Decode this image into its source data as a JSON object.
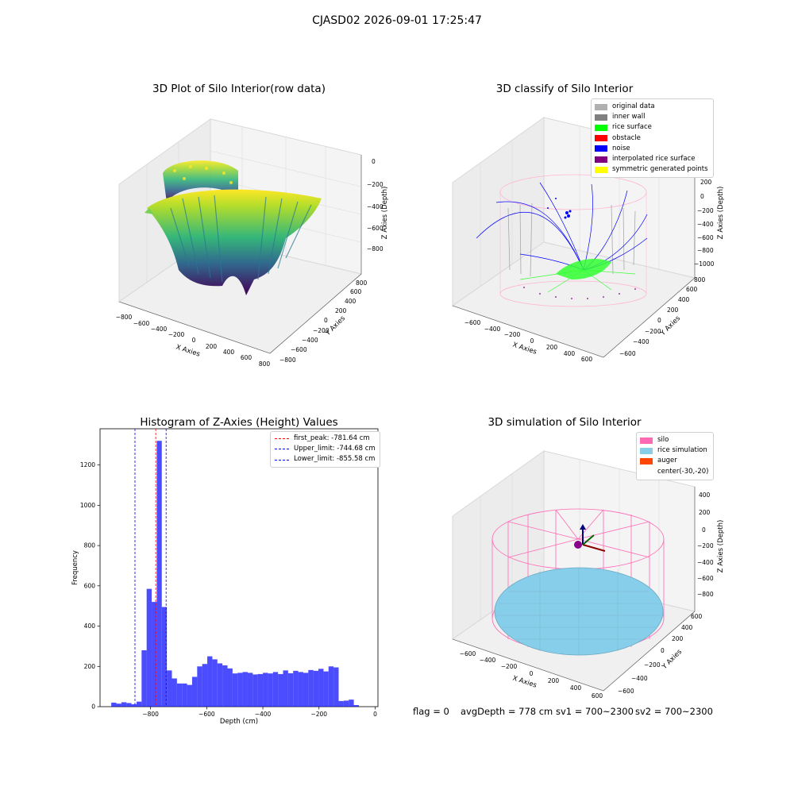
{
  "figure": {
    "title": "CJASD02 2026-09-01 17:25:47"
  },
  "panels": {
    "raw": {
      "title": "3D Plot of Silo Interior(row data)",
      "x_ticks": [
        "−800",
        "−600",
        "−400",
        "−200",
        "0",
        "200",
        "400",
        "600",
        "800"
      ],
      "y_ticks": [
        "−800",
        "−600",
        "−400",
        "−200",
        "0",
        "200",
        "400",
        "600",
        "800"
      ],
      "z_ticks": [
        "0",
        "−200",
        "−400",
        "−600",
        "−800"
      ],
      "x_label": "X Axies",
      "y_label": "Y Axies",
      "z_label": "Z Axies (Depth)"
    },
    "classify": {
      "title": "3D classify of Silo Interior",
      "x_ticks": [
        "−600",
        "−400",
        "−200",
        "0",
        "200",
        "400",
        "600"
      ],
      "y_ticks": [
        "−600",
        "−400",
        "−200",
        "0",
        "200",
        "400",
        "600",
        "800"
      ],
      "z_ticks": [
        "200",
        "0",
        "−200",
        "−400",
        "−600",
        "−800",
        "−1000"
      ],
      "x_label": "X Axies",
      "y_label": "Y Axies",
      "z_label": "Z Axies (Depth)",
      "legend": [
        {
          "label": "original data",
          "color": "#b0b0b0"
        },
        {
          "label": "inner wall",
          "color": "#808080"
        },
        {
          "label": "rice surface",
          "color": "#00ff00"
        },
        {
          "label": "obstacle",
          "color": "#ff0000"
        },
        {
          "label": "noise",
          "color": "#0000ff"
        },
        {
          "label": "interpolated rice surface",
          "color": "#800080"
        },
        {
          "label": "symmetric generated points",
          "color": "#ffff00"
        }
      ]
    },
    "simulation": {
      "title": "3D simulation of Silo Interior",
      "x_ticks": [
        "−600",
        "−400",
        "−200",
        "0",
        "200",
        "400",
        "600"
      ],
      "y_ticks": [
        "−600",
        "−400",
        "−200",
        "0",
        "200",
        "400",
        "600"
      ],
      "z_ticks": [
        "400",
        "200",
        "0",
        "−200",
        "−400",
        "−600",
        "−800"
      ],
      "x_label": "X Axies",
      "y_label": "Y Axies",
      "z_label": "Z Axies (Depth)",
      "legend": [
        {
          "label": "silo",
          "color": "#ff69b4"
        },
        {
          "label": "rice simulation",
          "color": "#87ceeb"
        },
        {
          "label": "auger",
          "color": "#ff4500"
        },
        {
          "label": "center(-30,-20)",
          "color": "#ffffff"
        }
      ]
    }
  },
  "chart_data": [
    {
      "type": "bar",
      "title": "Histogram of Z-Axies (Height) Values",
      "xlabel": "Depth (cm)",
      "ylabel": "Frequency",
      "xlim": [
        -980,
        10
      ],
      "ylim": [
        0,
        1380
      ],
      "x_ticks": [
        -800,
        -600,
        -400,
        -200,
        0
      ],
      "x_tick_labels": [
        "−800",
        "−600",
        "−400",
        "−200",
        "0"
      ],
      "y_ticks": [
        0,
        200,
        400,
        600,
        800,
        1000,
        1200
      ],
      "bar_color": "#0000ff",
      "bins": [
        {
          "x0": -940,
          "x1": -922,
          "v": 20
        },
        {
          "x0": -922,
          "x1": -904,
          "v": 15
        },
        {
          "x0": -904,
          "x1": -886,
          "v": 22
        },
        {
          "x0": -886,
          "x1": -868,
          "v": 18
        },
        {
          "x0": -868,
          "x1": -850,
          "v": 12
        },
        {
          "x0": -850,
          "x1": -832,
          "v": 25
        },
        {
          "x0": -832,
          "x1": -814,
          "v": 280
        },
        {
          "x0": -814,
          "x1": -796,
          "v": 585
        },
        {
          "x0": -796,
          "x1": -778,
          "v": 520
        },
        {
          "x0": -778,
          "x1": -760,
          "v": 1320
        },
        {
          "x0": -760,
          "x1": -742,
          "v": 495
        },
        {
          "x0": -742,
          "x1": -724,
          "v": 180
        },
        {
          "x0": -724,
          "x1": -706,
          "v": 140
        },
        {
          "x0": -706,
          "x1": -688,
          "v": 115
        },
        {
          "x0": -688,
          "x1": -670,
          "v": 115
        },
        {
          "x0": -670,
          "x1": -652,
          "v": 108
        },
        {
          "x0": -652,
          "x1": -634,
          "v": 148
        },
        {
          "x0": -634,
          "x1": -616,
          "v": 200
        },
        {
          "x0": -616,
          "x1": -598,
          "v": 212
        },
        {
          "x0": -598,
          "x1": -580,
          "v": 250
        },
        {
          "x0": -580,
          "x1": -562,
          "v": 235
        },
        {
          "x0": -562,
          "x1": -544,
          "v": 215
        },
        {
          "x0": -544,
          "x1": -526,
          "v": 205
        },
        {
          "x0": -526,
          "x1": -508,
          "v": 190
        },
        {
          "x0": -508,
          "x1": -490,
          "v": 165
        },
        {
          "x0": -490,
          "x1": -472,
          "v": 168
        },
        {
          "x0": -472,
          "x1": -454,
          "v": 172
        },
        {
          "x0": -454,
          "x1": -436,
          "v": 168
        },
        {
          "x0": -436,
          "x1": -418,
          "v": 160
        },
        {
          "x0": -418,
          "x1": -400,
          "v": 162
        },
        {
          "x0": -400,
          "x1": -382,
          "v": 168
        },
        {
          "x0": -382,
          "x1": -364,
          "v": 165
        },
        {
          "x0": -364,
          "x1": -346,
          "v": 172
        },
        {
          "x0": -346,
          "x1": -328,
          "v": 162
        },
        {
          "x0": -328,
          "x1": -310,
          "v": 180
        },
        {
          "x0": -310,
          "x1": -292,
          "v": 166
        },
        {
          "x0": -292,
          "x1": -274,
          "v": 178
        },
        {
          "x0": -274,
          "x1": -256,
          "v": 172
        },
        {
          "x0": -256,
          "x1": -238,
          "v": 168
        },
        {
          "x0": -238,
          "x1": -220,
          "v": 182
        },
        {
          "x0": -220,
          "x1": -202,
          "v": 178
        },
        {
          "x0": -202,
          "x1": -184,
          "v": 188
        },
        {
          "x0": -184,
          "x1": -166,
          "v": 175
        },
        {
          "x0": -166,
          "x1": -148,
          "v": 200
        },
        {
          "x0": -148,
          "x1": -130,
          "v": 195
        },
        {
          "x0": -130,
          "x1": -112,
          "v": 28
        },
        {
          "x0": -112,
          "x1": -94,
          "v": 30
        },
        {
          "x0": -94,
          "x1": -76,
          "v": 35
        },
        {
          "x0": -76,
          "x1": -58,
          "v": 8
        }
      ],
      "vlines": [
        {
          "x": -781.64,
          "color": "#ff0000",
          "label": "first_peak: -781.64 cm"
        },
        {
          "x": -744.68,
          "color": "#0000ff",
          "label": "Upper_limit: -744.68 cm"
        },
        {
          "x": -855.58,
          "color": "#0000ff",
          "label": "Lower_limit: -855.58 cm"
        }
      ]
    }
  ],
  "footer": {
    "flag": "flag = 0",
    "avg": "avgDepth = 778 cm",
    "sv1": "sv1 = 700~2300",
    "sv2": "sv2 = 700~2300"
  }
}
